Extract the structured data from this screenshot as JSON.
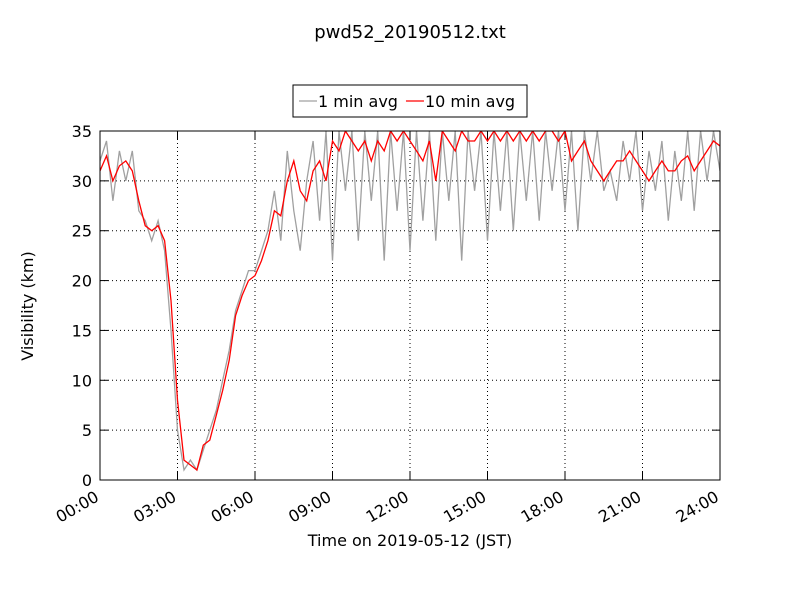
{
  "chart_data": {
    "type": "line",
    "title": "pwd52_20190512.txt",
    "xlabel": "Time on 2019-05-12 (JST)",
    "ylabel": "Visibility (km)",
    "x": [
      0,
      0.25,
      0.5,
      0.75,
      1,
      1.25,
      1.5,
      1.75,
      2,
      2.25,
      2.5,
      2.75,
      3,
      3.25,
      3.5,
      3.75,
      4,
      4.25,
      4.5,
      4.75,
      5,
      5.25,
      5.5,
      5.75,
      6,
      6.25,
      6.5,
      6.75,
      7,
      7.25,
      7.5,
      7.75,
      8,
      8.25,
      8.5,
      8.75,
      9,
      9.25,
      9.5,
      9.75,
      10,
      10.25,
      10.5,
      10.75,
      11,
      11.25,
      11.5,
      11.75,
      12,
      12.25,
      12.5,
      12.75,
      13,
      13.25,
      13.5,
      13.75,
      14,
      14.25,
      14.5,
      14.75,
      15,
      15.25,
      15.5,
      15.75,
      16,
      16.25,
      16.5,
      16.75,
      17,
      17.25,
      17.5,
      17.75,
      18,
      18.25,
      18.5,
      18.75,
      19,
      19.25,
      19.5,
      19.75,
      20,
      20.25,
      20.5,
      20.75,
      21,
      21.25,
      21.5,
      21.75,
      22,
      22.25,
      22.5,
      22.75,
      23,
      23.25,
      23.5,
      23.75,
      24
    ],
    "series": [
      {
        "name": "1 min avg",
        "color": "#a0a0a0",
        "values": [
          32,
          34,
          28,
          33,
          30,
          33,
          27,
          26,
          24,
          26,
          23,
          15,
          5,
          1,
          2,
          1,
          3,
          5,
          7,
          10,
          13,
          17,
          19,
          21,
          21,
          23,
          25,
          29,
          24,
          33,
          27,
          23,
          30,
          34,
          26,
          35,
          22,
          35,
          29,
          35,
          24,
          35,
          28,
          35,
          22,
          35,
          27,
          35,
          23,
          35,
          26,
          35,
          24,
          35,
          28,
          35,
          22,
          35,
          29,
          35,
          24,
          35,
          27,
          35,
          25,
          35,
          28,
          35,
          26,
          35,
          29,
          35,
          27,
          35,
          25,
          35,
          30,
          35,
          29,
          31,
          28,
          34,
          30,
          35,
          27,
          33,
          29,
          34,
          26,
          33,
          28,
          35,
          27,
          35,
          30,
          35,
          31
        ]
      },
      {
        "name": "10 min avg",
        "color": "#ff0000",
        "values": [
          31,
          32.5,
          30,
          31.5,
          32,
          31,
          28,
          25.5,
          25,
          25.5,
          24,
          18,
          8,
          2,
          1.5,
          1,
          3.5,
          4,
          6.5,
          9,
          12,
          16.5,
          18.5,
          20,
          20.5,
          22,
          24,
          27,
          26.5,
          30,
          32,
          29,
          28,
          31,
          32,
          30,
          34,
          33,
          35,
          34,
          33,
          34,
          32,
          34,
          33,
          35,
          34,
          35,
          34,
          33,
          32,
          34,
          30,
          35,
          34,
          33,
          35,
          34,
          34,
          35,
          34,
          35,
          34,
          35,
          34,
          35,
          34,
          35,
          34,
          35,
          35,
          34,
          35,
          32,
          33,
          34,
          32,
          31,
          30,
          31,
          32,
          32,
          33,
          32,
          31,
          30,
          31,
          32,
          31,
          31,
          32,
          32.5,
          31,
          32,
          33,
          34,
          33.5
        ]
      }
    ],
    "xlim": [
      0,
      24
    ],
    "xticks": [
      {
        "value": 0,
        "label": "00:00"
      },
      {
        "value": 3,
        "label": "03:00"
      },
      {
        "value": 6,
        "label": "06:00"
      },
      {
        "value": 9,
        "label": "09:00"
      },
      {
        "value": 12,
        "label": "12:00"
      },
      {
        "value": 15,
        "label": "15:00"
      },
      {
        "value": 18,
        "label": "18:00"
      },
      {
        "value": 21,
        "label": "21:00"
      },
      {
        "value": 24,
        "label": "24:00"
      }
    ],
    "ylim": [
      0,
      35
    ],
    "yticks": [
      0,
      5,
      10,
      15,
      20,
      25,
      30,
      35
    ],
    "grid": true,
    "legend": "upper center"
  }
}
